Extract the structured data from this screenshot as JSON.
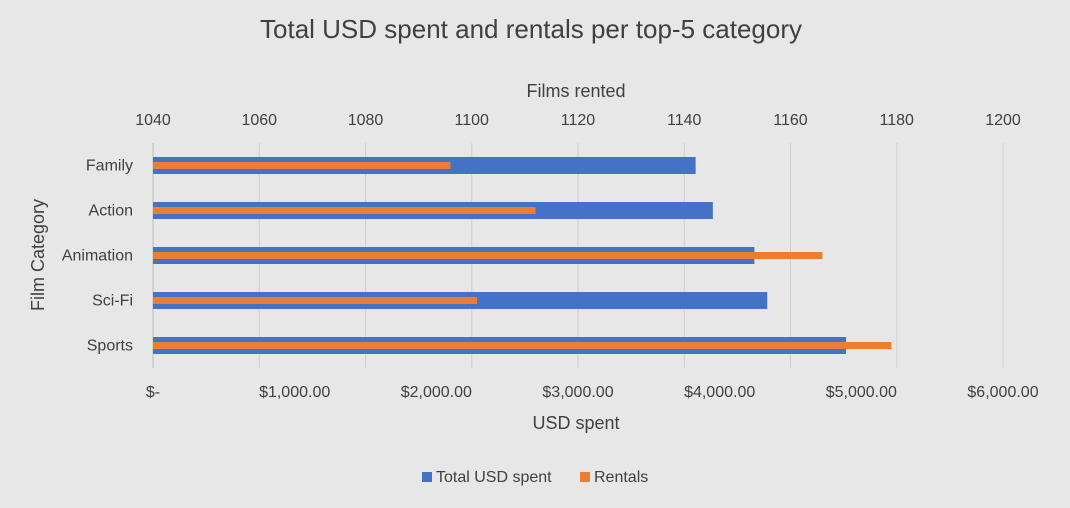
{
  "chart_data": {
    "type": "bar",
    "orientation": "horizontal",
    "title": "Total USD spent and rentals per top-5 category",
    "ylabel": "Film Category",
    "xlabel_bottom": "USD spent",
    "xlabel_top": "Films rented",
    "categories": [
      "Family",
      "Action",
      "Animation",
      "Sci-Fi",
      "Sports"
    ],
    "series": [
      {
        "name": "Total USD spent",
        "axis": "bottom",
        "color": "#4472c4",
        "values": [
          3830.15,
          3951.84,
          4245.31,
          4336.01,
          4892.19
        ]
      },
      {
        "name": "Rentals",
        "axis": "top",
        "color": "#ed7d31",
        "values": [
          1096,
          1112,
          1166,
          1101,
          1179
        ]
      }
    ],
    "bottom_axis": {
      "min": 0,
      "max": 6000,
      "ticks": [
        0,
        1000,
        2000,
        3000,
        4000,
        5000,
        6000
      ],
      "tick_labels": [
        "$-",
        "$1,000.00",
        "$2,000.00",
        "$3,000.00",
        "$4,000.00",
        "$5,000.00",
        "$6,000.00"
      ]
    },
    "top_axis": {
      "min": 1040,
      "max": 1200,
      "ticks": [
        1040,
        1060,
        1080,
        1100,
        1120,
        1140,
        1160,
        1180,
        1200
      ],
      "tick_labels": [
        "1040",
        "1060",
        "1080",
        "1100",
        "1120",
        "1140",
        "1160",
        "1180",
        "1200"
      ]
    },
    "grid": true,
    "legend": "bottom"
  }
}
